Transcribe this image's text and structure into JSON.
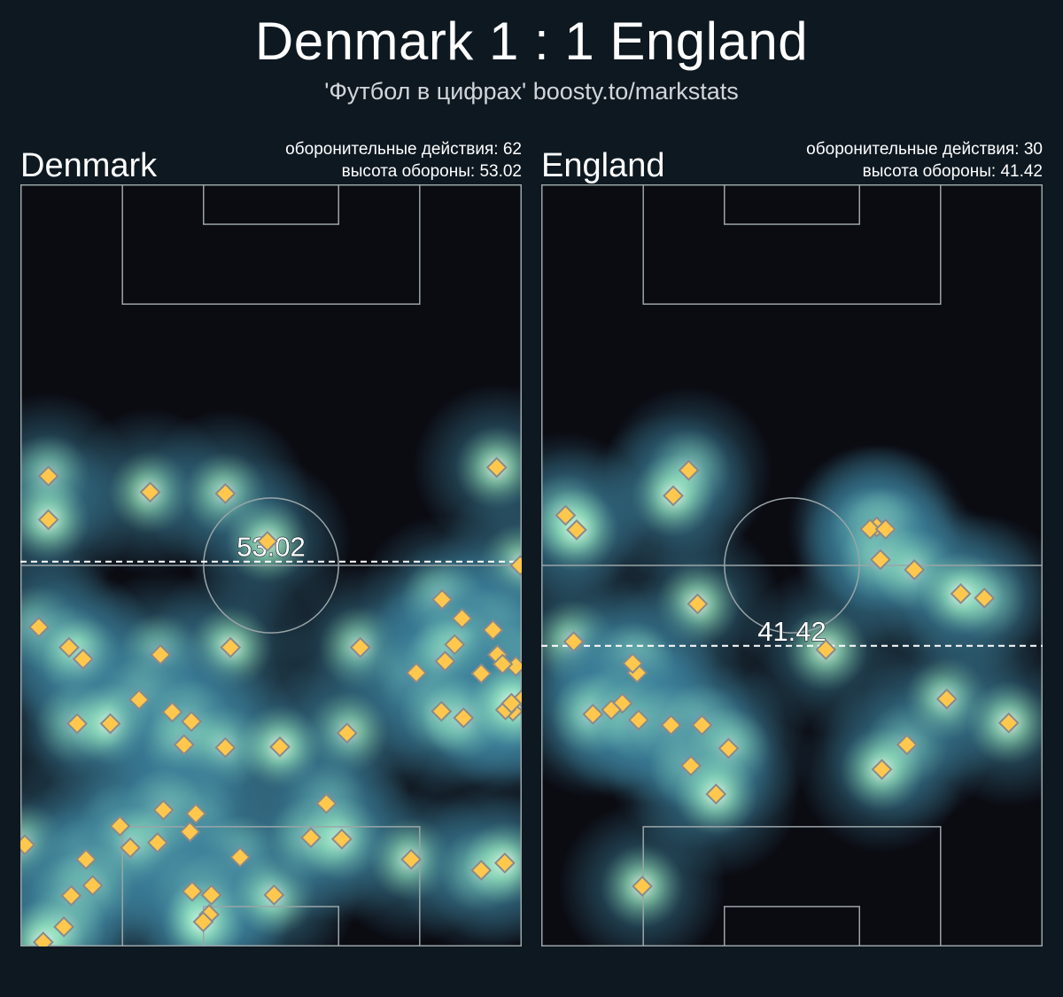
{
  "header": {
    "title": "Denmark 1 : 1 England",
    "subtitle": "'Футбол в цифрах' boosty.to/markstats"
  },
  "colors": {
    "background": "#0e1821",
    "marker_fill": "#ffc84d",
    "marker_stroke": "#8a8a8a",
    "pitch_lines": "#9aa5a8",
    "heat_low": "#0b0b12",
    "heat_mid": "#3b7f9a",
    "heat_high": "#e9fff0"
  },
  "chart_data": [
    {
      "type": "scatter",
      "team": "Denmark",
      "stats": {
        "actions_label": "оборонительные действия: 62",
        "height_label": "высота обороны: 53.02"
      },
      "defensive_actions": 62,
      "defense_height": 53.02,
      "defense_height_label": "53.02",
      "pitch": {
        "length": 105,
        "width": 68,
        "orientation": "vertical",
        "attack_direction": "up"
      },
      "marker": "diamond",
      "points": [
        [
          3.8,
          64.8
        ],
        [
          3.8,
          58.8
        ],
        [
          17.6,
          62.6
        ],
        [
          27.8,
          62.4
        ],
        [
          33.5,
          55.8
        ],
        [
          64.6,
          66.0
        ],
        [
          2.5,
          44.0
        ],
        [
          6.6,
          41.2
        ],
        [
          8.5,
          39.6
        ],
        [
          19.0,
          40.2
        ],
        [
          28.5,
          41.2
        ],
        [
          46.1,
          41.2
        ],
        [
          53.7,
          37.7
        ],
        [
          67.8,
          52.5
        ],
        [
          59.9,
          45.2
        ],
        [
          57.2,
          47.8
        ],
        [
          62.5,
          37.6
        ],
        [
          64.7,
          40.2
        ],
        [
          64.1,
          43.6
        ],
        [
          67.2,
          38.6
        ],
        [
          68.2,
          34.2
        ],
        [
          65.4,
          38.9
        ],
        [
          58.9,
          41.6
        ],
        [
          57.6,
          39.3
        ],
        [
          66.8,
          32.4
        ],
        [
          65.8,
          32.6
        ],
        [
          57.1,
          32.4
        ],
        [
          60.1,
          31.5
        ],
        [
          66.6,
          33.5
        ],
        [
          20.6,
          32.3
        ],
        [
          16.1,
          34.0
        ],
        [
          7.7,
          30.7
        ],
        [
          12.2,
          30.7
        ],
        [
          23.2,
          31.0
        ],
        [
          22.2,
          27.8
        ],
        [
          27.8,
          27.4
        ],
        [
          44.3,
          29.4
        ],
        [
          41.5,
          19.7
        ],
        [
          35.2,
          27.5
        ],
        [
          23.8,
          18.3
        ],
        [
          23.0,
          15.8
        ],
        [
          13.5,
          16.6
        ],
        [
          0.6,
          14.0
        ],
        [
          8.9,
          12.0
        ],
        [
          19.4,
          18.8
        ],
        [
          18.6,
          14.3
        ],
        [
          14.9,
          13.6
        ],
        [
          29.8,
          12.3
        ],
        [
          9.8,
          8.4
        ],
        [
          23.3,
          7.6
        ],
        [
          25.9,
          7.1
        ],
        [
          25.6,
          4.4
        ],
        [
          24.8,
          3.4
        ],
        [
          34.4,
          7.1
        ],
        [
          39.4,
          15.0
        ],
        [
          43.6,
          14.8
        ],
        [
          6.9,
          7.0
        ],
        [
          5.9,
          2.7
        ],
        [
          3.1,
          0.6
        ],
        [
          53.0,
          12.0
        ],
        [
          62.5,
          10.5
        ],
        [
          65.7,
          11.5
        ]
      ]
    },
    {
      "type": "scatter",
      "team": "England",
      "stats": {
        "actions_label": "оборонительные действия: 30",
        "height_label": "высота обороны: 41.42"
      },
      "defensive_actions": 30,
      "defense_height": 41.42,
      "defense_height_label": "41.42",
      "pitch": {
        "length": 105,
        "width": 68,
        "orientation": "vertical",
        "attack_direction": "up"
      },
      "marker": "diamond",
      "points": [
        [
          20.0,
          65.6
        ],
        [
          17.9,
          62.1
        ],
        [
          3.3,
          59.4
        ],
        [
          4.8,
          57.4
        ],
        [
          45.5,
          57.8
        ],
        [
          44.6,
          57.5
        ],
        [
          46.7,
          57.5
        ],
        [
          60.1,
          48.0
        ],
        [
          46.0,
          53.3
        ],
        [
          50.6,
          51.9
        ],
        [
          56.9,
          48.6
        ],
        [
          38.6,
          40.9
        ],
        [
          4.4,
          42.0
        ],
        [
          21.2,
          47.2
        ],
        [
          13.0,
          37.7
        ],
        [
          12.4,
          39.0
        ],
        [
          11.0,
          33.5
        ],
        [
          9.5,
          32.6
        ],
        [
          7.0,
          32.0
        ],
        [
          13.2,
          31.2
        ],
        [
          17.6,
          30.5
        ],
        [
          21.8,
          30.5
        ],
        [
          20.3,
          24.9
        ],
        [
          25.4,
          27.3
        ],
        [
          49.6,
          27.8
        ],
        [
          55.0,
          34.1
        ],
        [
          46.2,
          24.4
        ],
        [
          63.4,
          30.8
        ],
        [
          13.7,
          8.3
        ],
        [
          23.7,
          21.0
        ]
      ]
    }
  ]
}
